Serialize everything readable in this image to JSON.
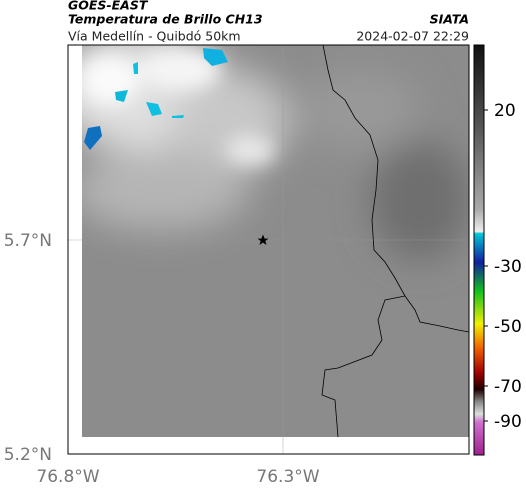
{
  "header": {
    "satellite": "GOES-EAST",
    "product": "Temperatura de Brillo CH13",
    "region": "Vía Medellín - Quibdó 50km",
    "source": "SIATA",
    "timestamp": "2024-02-07 22:29"
  },
  "map": {
    "lat_labels": [
      "5.7°N",
      "5.2°N"
    ],
    "lon_labels": [
      "76.8°W",
      "76.3°W"
    ]
  },
  "colorbar": {
    "ticks": [
      20,
      -30,
      -50,
      -70,
      -90
    ]
  }
}
